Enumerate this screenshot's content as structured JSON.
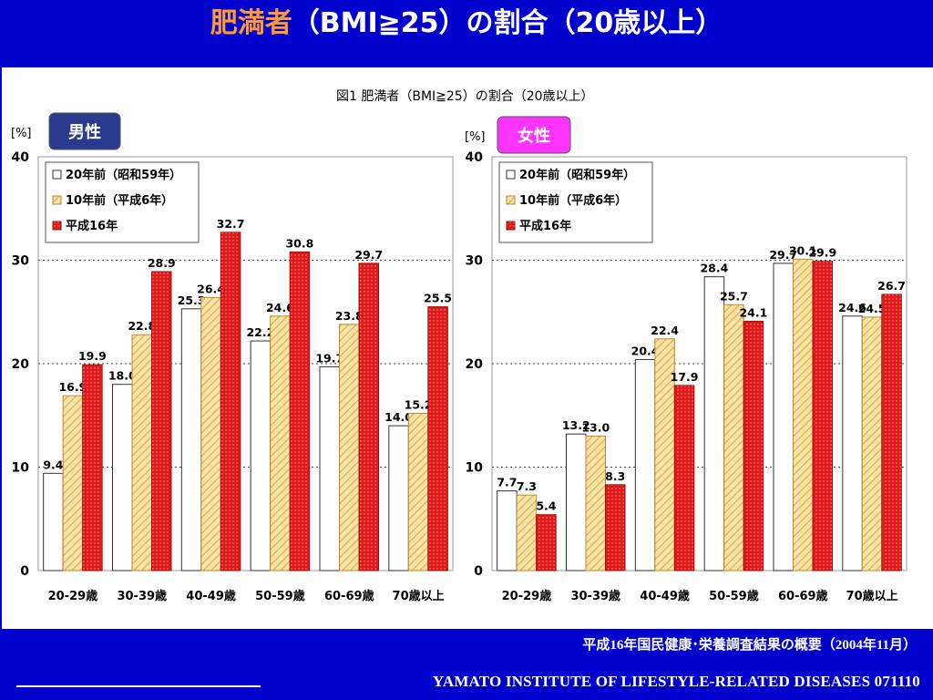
{
  "header": {
    "title_accent": "肥満者",
    "title_rest": "（BMI≧25）の割合（20歳以上）"
  },
  "figure": {
    "caption": "図1  肥満者（BMI≧25）の割合（20歳以上）"
  },
  "colors": {
    "background": "#0000cc",
    "title_accent": "#ff9933",
    "male_badge": "#2b3a8c",
    "female_badge": "#ff33ff",
    "series_20yrs": "#ffffff",
    "series_10yrs": "#f5d88a",
    "series_h16": "#e01818"
  },
  "chart_data": [
    {
      "type": "bar",
      "panel_label": "男性",
      "unit_label": "[%]",
      "categories": [
        "20-29歳",
        "30-39歳",
        "40-49歳",
        "50-59歳",
        "60-69歳",
        "70歳以上"
      ],
      "series": [
        {
          "name": "20年前（昭和59年）",
          "values": [
            9.4,
            18.0,
            25.3,
            22.2,
            19.7,
            14.0
          ]
        },
        {
          "name": "10年前（平成6年）",
          "values": [
            16.9,
            22.8,
            26.4,
            24.6,
            23.8,
            15.2
          ]
        },
        {
          "name": "平成16年",
          "values": [
            19.9,
            28.9,
            32.7,
            30.8,
            29.7,
            25.5
          ]
        }
      ],
      "value_labels": [
        [
          "9.4",
          "18.0",
          "25.3",
          "22.2",
          "19.7",
          "14.0"
        ],
        [
          "16.9",
          "22.8",
          "26.4",
          "24.6",
          "23.8",
          "15.2"
        ],
        [
          "19.9",
          "28.9",
          "32.7",
          "30.8",
          "29.7",
          "25.5"
        ]
      ],
      "ylim": [
        0,
        40
      ],
      "yticks": [
        0,
        10,
        20,
        30,
        40
      ],
      "grid": "dotted horizontal",
      "legend": "top-left"
    },
    {
      "type": "bar",
      "panel_label": "女性",
      "unit_label": "[%]",
      "categories": [
        "20-29歳",
        "30-39歳",
        "40-49歳",
        "50-59歳",
        "60-69歳",
        "70歳以上"
      ],
      "series": [
        {
          "name": "20年前（昭和59年）",
          "values": [
            7.7,
            13.2,
            20.4,
            28.4,
            29.7,
            24.6
          ]
        },
        {
          "name": "10年前（平成6年）",
          "values": [
            7.3,
            13.0,
            22.4,
            25.7,
            30.1,
            24.5
          ]
        },
        {
          "name": "平成16年",
          "values": [
            5.4,
            8.3,
            17.9,
            24.1,
            29.9,
            26.7
          ]
        }
      ],
      "value_labels": [
        [
          "7.7",
          "13.2",
          "20.4",
          "28.4",
          "29.7",
          "24.6"
        ],
        [
          "7.3",
          "13.0",
          "22.4",
          "25.7",
          "30.1",
          "24.5"
        ],
        [
          "5.4",
          "8.3",
          "17.9",
          "24.1",
          "29.9",
          "26.7"
        ]
      ],
      "ylim": [
        0,
        40
      ],
      "yticks": [
        0,
        10,
        20,
        30,
        40
      ],
      "grid": "dotted horizontal",
      "legend": "top-left"
    }
  ],
  "footer": {
    "source": "平成16年国民健康･栄養調査結果の概要（2004年11月）",
    "institute": "YAMATO INSTITUTE OF LIFESTYLE-RELATED DISEASES  071110"
  }
}
